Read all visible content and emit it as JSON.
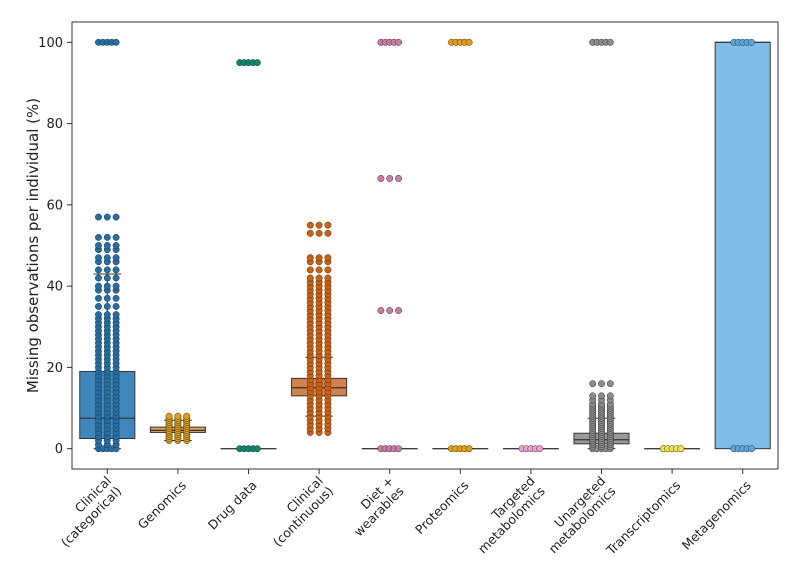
{
  "chart_data": {
    "type": "box",
    "title": "",
    "xlabel": "",
    "ylabel": "Missing observations per individual (%)",
    "ylim": [
      -5,
      105
    ],
    "yticks": [
      0,
      20,
      40,
      60,
      80,
      100
    ],
    "grid": false,
    "categories": [
      {
        "label": "Clinical\n(categorical)",
        "color": "#3f86ba",
        "dot": "#1f6fa8",
        "q1": 2.5,
        "median": 7.5,
        "q3": 19.0,
        "whisker_low": 0,
        "whisker_high": 43,
        "points": [
          0,
          1,
          2,
          3,
          4,
          5,
          6,
          7,
          8,
          9,
          10,
          11,
          12,
          13,
          14,
          15,
          16,
          17,
          18,
          19,
          20,
          21,
          22,
          23,
          24,
          25,
          26,
          27,
          28,
          29,
          30,
          31,
          32,
          33,
          35,
          37,
          39,
          40,
          42,
          44,
          46,
          47,
          49,
          50,
          52,
          57,
          100
        ]
      },
      {
        "label": "Genomics",
        "color": "#e0a458",
        "dot": "#e69f00",
        "q1": 4.0,
        "median": 4.5,
        "q3": 5.3,
        "whisker_low": 2,
        "whisker_high": 7,
        "points": [
          2,
          2.5,
          3,
          3.5,
          4,
          4.5,
          5,
          5.5,
          6,
          6.5,
          7,
          7.5,
          8
        ]
      },
      {
        "label": "Drug data",
        "color": "#3cab7f",
        "dot": "#00896a",
        "q1": 0,
        "median": 0,
        "q3": 0,
        "whisker_low": 0,
        "whisker_high": 0,
        "points": [
          0,
          95
        ]
      },
      {
        "label": "Clinical\n(continuous)",
        "color": "#d2834d",
        "dot": "#d55e00",
        "q1": 13,
        "median": 15,
        "q3": 17.3,
        "whisker_low": 8,
        "whisker_high": 22.5,
        "points": [
          4,
          5,
          6,
          7,
          8,
          9,
          10,
          11,
          12,
          13,
          14,
          15,
          16,
          17,
          18,
          19,
          20,
          21,
          22,
          23,
          24,
          25,
          26,
          27,
          28,
          29,
          30,
          31,
          32,
          33,
          34,
          35,
          36,
          37,
          38,
          39,
          40,
          41,
          42,
          44,
          46,
          47,
          53,
          55
        ]
      },
      {
        "label": "Diet +\nwearables",
        "color": "#cc79a7",
        "dot": "#cc79a7",
        "q1": 0,
        "median": 0,
        "q3": 0,
        "whisker_low": 0,
        "whisker_high": 0,
        "points": [
          0,
          34,
          66.5,
          100
        ]
      },
      {
        "label": "Proteomics",
        "color": "#e0a458",
        "dot": "#e69f00",
        "q1": 0,
        "median": 0,
        "q3": 0,
        "whisker_low": 0,
        "whisker_high": 0,
        "points": [
          0,
          100
        ]
      },
      {
        "label": "Targeted\nmetabolomics",
        "color": "#e8a0c8",
        "dot": "#f0a0d0",
        "q1": 0,
        "median": 0,
        "q3": 0,
        "whisker_low": 0,
        "whisker_high": 0,
        "points": [
          0
        ]
      },
      {
        "label": "Unargeted\nmetabolomics",
        "color": "#9a9a9a",
        "dot": "#8c8c8c",
        "q1": 1.2,
        "median": 2.2,
        "q3": 3.8,
        "whisker_low": 0,
        "whisker_high": 7.5,
        "points": [
          0,
          0.5,
          1,
          1.5,
          2,
          2.5,
          3,
          3.5,
          4,
          4.5,
          5,
          5.5,
          6,
          6.5,
          7,
          7.5,
          8,
          8.5,
          9,
          9.5,
          10,
          10.5,
          11,
          12,
          13,
          16,
          100
        ]
      },
      {
        "label": "Transcriptomics",
        "color": "#f0e442",
        "dot": "#f0e442",
        "q1": 0,
        "median": 0,
        "q3": 0,
        "whisker_low": 0,
        "whisker_high": 0,
        "points": [
          0
        ]
      },
      {
        "label": "Metagenomics",
        "color": "#80bde6",
        "dot": "#56a8dc",
        "q1": 0,
        "median": 100,
        "q3": 100,
        "whisker_low": 0,
        "whisker_high": 100,
        "points": [
          0,
          100
        ]
      }
    ]
  }
}
